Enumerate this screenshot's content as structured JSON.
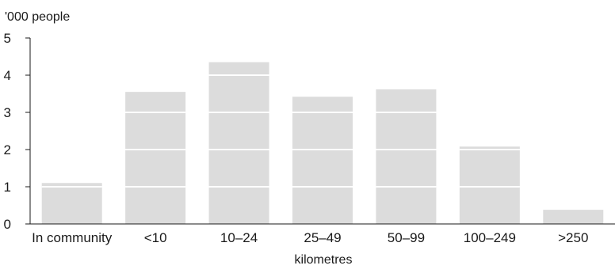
{
  "chart_data": {
    "type": "bar",
    "title": "",
    "ylabel": "'000 people",
    "xlabel": "kilometres",
    "categories": [
      "In community",
      "<10",
      "10–24",
      "25–49",
      "50–99",
      "100–249",
      ">250"
    ],
    "values": [
      1.1,
      3.55,
      4.35,
      3.42,
      3.62,
      2.08,
      0.38
    ],
    "ylim": [
      0,
      5
    ],
    "yticks": [
      0,
      1,
      2,
      3,
      4,
      5
    ],
    "grid": false,
    "bar_color": "#dcdcdc",
    "overlay_line_color": "#ffffff"
  }
}
